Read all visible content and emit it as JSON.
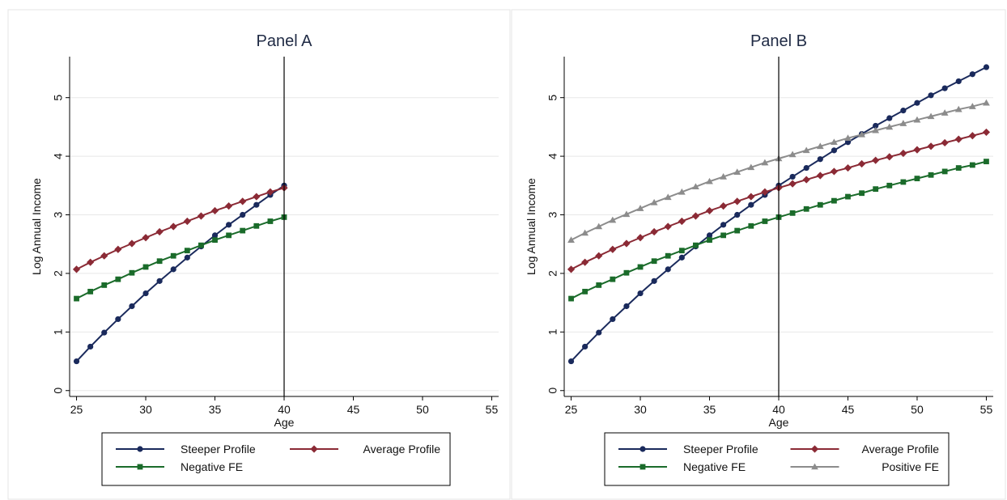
{
  "chart_data": [
    {
      "type": "line",
      "title": "Panel A",
      "xlabel": "Age",
      "ylabel": "Log Annual Income",
      "xlim": [
        24.5,
        55.5
      ],
      "ylim": [
        -0.1,
        5.7
      ],
      "xticks": [
        25,
        30,
        35,
        40,
        45,
        50,
        55
      ],
      "yticks": [
        0,
        1,
        2,
        3,
        4,
        5
      ],
      "grid": true,
      "vline_x": 40,
      "legend_position": "bottom",
      "legend_columns": 2,
      "series": [
        {
          "name": "Steeper Profile",
          "color": "#1a2a5c",
          "marker": "circle",
          "x": [
            25,
            26,
            27,
            28,
            29,
            30,
            31,
            32,
            33,
            34,
            35,
            36,
            37,
            38,
            39,
            40
          ],
          "y": [
            0.5,
            0.75,
            0.99,
            1.22,
            1.44,
            1.66,
            1.87,
            2.07,
            2.27,
            2.46,
            2.65,
            2.83,
            3.0,
            3.17,
            3.34,
            3.5
          ]
        },
        {
          "name": "Average Profile",
          "color": "#8b2a35",
          "marker": "diamond",
          "x": [
            25,
            26,
            27,
            28,
            29,
            30,
            31,
            32,
            33,
            34,
            35,
            36,
            37,
            38,
            39,
            40
          ],
          "y": [
            2.07,
            2.19,
            2.3,
            2.41,
            2.51,
            2.61,
            2.71,
            2.8,
            2.89,
            2.98,
            3.07,
            3.15,
            3.23,
            3.31,
            3.39,
            3.46
          ]
        },
        {
          "name": "Negative FE",
          "color": "#1a6b2a",
          "marker": "square",
          "x": [
            25,
            26,
            27,
            28,
            29,
            30,
            31,
            32,
            33,
            34,
            35,
            36,
            37,
            38,
            39,
            40
          ],
          "y": [
            1.57,
            1.69,
            1.8,
            1.9,
            2.01,
            2.11,
            2.21,
            2.3,
            2.39,
            2.48,
            2.57,
            2.65,
            2.73,
            2.81,
            2.89,
            2.96
          ]
        }
      ]
    },
    {
      "type": "line",
      "title": "Panel B",
      "xlabel": "Age",
      "ylabel": "Log Annual Income",
      "xlim": [
        24.5,
        55.5
      ],
      "ylim": [
        -0.1,
        5.7
      ],
      "xticks": [
        25,
        30,
        35,
        40,
        45,
        50,
        55
      ],
      "yticks": [
        0,
        1,
        2,
        3,
        4,
        5
      ],
      "grid": true,
      "vline_x": 40,
      "legend_position": "bottom",
      "legend_columns": 2,
      "series": [
        {
          "name": "Steeper Profile",
          "color": "#1a2a5c",
          "marker": "circle",
          "x": [
            25,
            26,
            27,
            28,
            29,
            30,
            31,
            32,
            33,
            34,
            35,
            36,
            37,
            38,
            39,
            40,
            41,
            42,
            43,
            44,
            45,
            46,
            47,
            48,
            49,
            50,
            51,
            52,
            53,
            54,
            55
          ],
          "y": [
            0.5,
            0.75,
            0.99,
            1.22,
            1.44,
            1.66,
            1.87,
            2.07,
            2.27,
            2.46,
            2.65,
            2.83,
            3.0,
            3.17,
            3.34,
            3.5,
            3.65,
            3.8,
            3.95,
            4.1,
            4.24,
            4.38,
            4.52,
            4.65,
            4.78,
            4.91,
            5.04,
            5.16,
            5.28,
            5.4,
            5.52
          ]
        },
        {
          "name": "Average Profile",
          "color": "#8b2a35",
          "marker": "diamond",
          "x": [
            25,
            26,
            27,
            28,
            29,
            30,
            31,
            32,
            33,
            34,
            35,
            36,
            37,
            38,
            39,
            40,
            41,
            42,
            43,
            44,
            45,
            46,
            47,
            48,
            49,
            50,
            51,
            52,
            53,
            54,
            55
          ],
          "y": [
            2.07,
            2.19,
            2.3,
            2.41,
            2.51,
            2.61,
            2.71,
            2.8,
            2.89,
            2.98,
            3.07,
            3.15,
            3.23,
            3.31,
            3.39,
            3.46,
            3.53,
            3.6,
            3.67,
            3.74,
            3.8,
            3.87,
            3.93,
            3.99,
            4.05,
            4.11,
            4.17,
            4.23,
            4.29,
            4.35,
            4.41
          ]
        },
        {
          "name": "Negative FE",
          "color": "#1a6b2a",
          "marker": "square",
          "x": [
            25,
            26,
            27,
            28,
            29,
            30,
            31,
            32,
            33,
            34,
            35,
            36,
            37,
            38,
            39,
            40,
            41,
            42,
            43,
            44,
            45,
            46,
            47,
            48,
            49,
            50,
            51,
            52,
            53,
            54,
            55
          ],
          "y": [
            1.57,
            1.69,
            1.8,
            1.9,
            2.01,
            2.11,
            2.21,
            2.3,
            2.39,
            2.48,
            2.57,
            2.65,
            2.73,
            2.81,
            2.89,
            2.96,
            3.03,
            3.1,
            3.17,
            3.24,
            3.31,
            3.37,
            3.44,
            3.5,
            3.56,
            3.62,
            3.68,
            3.74,
            3.8,
            3.85,
            3.91
          ]
        },
        {
          "name": "Positive FE",
          "color": "#8c8c8c",
          "marker": "triangle",
          "x": [
            25,
            26,
            27,
            28,
            29,
            30,
            31,
            32,
            33,
            34,
            35,
            36,
            37,
            38,
            39,
            40,
            41,
            42,
            43,
            44,
            45,
            46,
            47,
            48,
            49,
            50,
            51,
            52,
            53,
            54,
            55
          ],
          "y": [
            2.57,
            2.69,
            2.8,
            2.91,
            3.01,
            3.11,
            3.21,
            3.3,
            3.39,
            3.48,
            3.57,
            3.65,
            3.73,
            3.81,
            3.89,
            3.96,
            4.03,
            4.1,
            4.17,
            4.24,
            4.31,
            4.37,
            4.44,
            4.5,
            4.56,
            4.62,
            4.68,
            4.74,
            4.8,
            4.85,
            4.91
          ]
        }
      ]
    }
  ]
}
